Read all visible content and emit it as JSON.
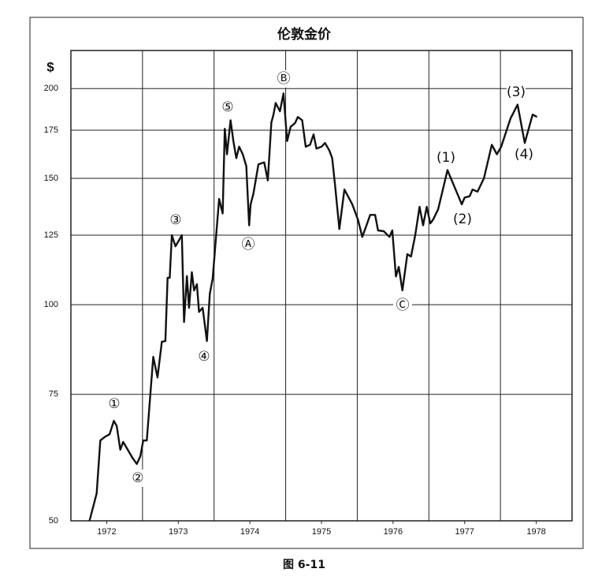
{
  "chart_data": {
    "type": "line",
    "title": "伦敦金价",
    "y_label": "$",
    "caption": "图 6-11",
    "log_y": true,
    "grid": true,
    "color": "#111111",
    "xlim": [
      1971.5,
      1978.5
    ],
    "xticks": [
      1972,
      1973,
      1974,
      1975,
      1976,
      1977,
      1978
    ],
    "xgrid": [
      1972.5,
      1973.5,
      1974.5,
      1975.5,
      1976.5,
      1977.5
    ],
    "ylim": [
      50,
      226
    ],
    "yticks": [
      50,
      75,
      100,
      125,
      150,
      175,
      200
    ],
    "x": [
      1971.76,
      1971.86,
      1971.91,
      1971.98,
      1972.04,
      1972.1,
      1972.14,
      1972.19,
      1972.23,
      1972.36,
      1972.42,
      1972.47,
      1972.51,
      1972.56,
      1972.65,
      1972.71,
      1972.77,
      1972.82,
      1972.85,
      1972.88,
      1972.91,
      1972.96,
      1973.01,
      1973.05,
      1973.08,
      1973.12,
      1973.15,
      1973.19,
      1973.22,
      1973.26,
      1973.29,
      1973.34,
      1973.4,
      1973.44,
      1973.48,
      1973.57,
      1973.62,
      1973.65,
      1973.68,
      1973.73,
      1973.77,
      1973.81,
      1973.85,
      1973.9,
      1973.95,
      1973.99,
      1974.01,
      1974.05,
      1974.12,
      1974.2,
      1974.25,
      1974.3,
      1974.33,
      1974.36,
      1974.42,
      1974.47,
      1974.52,
      1974.57,
      1974.63,
      1974.67,
      1974.73,
      1974.78,
      1974.84,
      1974.89,
      1974.93,
      1975.0,
      1975.05,
      1975.11,
      1975.15,
      1975.19,
      1975.25,
      1975.32,
      1975.43,
      1975.51,
      1975.57,
      1975.63,
      1975.68,
      1975.75,
      1975.79,
      1975.87,
      1975.95,
      1975.99,
      1976.04,
      1976.08,
      1976.13,
      1976.2,
      1976.25,
      1976.31,
      1976.37,
      1976.42,
      1976.47,
      1976.52,
      1976.56,
      1976.63,
      1976.76,
      1976.96,
      1977.0,
      1977.07,
      1977.11,
      1977.18,
      1977.27,
      1977.38,
      1977.45,
      1977.51,
      1977.64,
      1977.74,
      1977.84,
      1977.95,
      1978.01
    ],
    "values": [
      50,
      54.6,
      64.7,
      65.5,
      66,
      68.9,
      67.8,
      62.8,
      64.4,
      61.2,
      60,
      61.5,
      64.7,
      64.7,
      84.6,
      79.2,
      88.8,
      89,
      109,
      109,
      125,
      120.6,
      123,
      125,
      94.6,
      109.6,
      99,
      111,
      104.7,
      106.8,
      97.7,
      99,
      89,
      103.6,
      108.7,
      140.4,
      134,
      175.8,
      162,
      180.7,
      169,
      160,
      166,
      162,
      156,
      129,
      138,
      142.9,
      156.9,
      157.9,
      149,
      179.4,
      184,
      191,
      186,
      197,
      169,
      177,
      179,
      182.6,
      180.7,
      166,
      167,
      172.7,
      165,
      166,
      168,
      164,
      160,
      146.5,
      127.5,
      144.7,
      138,
      131.4,
      124.3,
      129,
      133.4,
      133.4,
      126.9,
      126.6,
      124.3,
      126.9,
      109.5,
      112.9,
      104.7,
      117.6,
      116.7,
      125,
      136.9,
      129,
      136.9,
      129.8,
      131.4,
      135.8,
      154,
      138,
      141,
      141.6,
      144.7,
      143.7,
      150,
      167,
      162,
      166,
      181.7,
      190,
      168,
      184,
      182.6
    ],
    "annotations": [
      "①",
      "②",
      "③",
      "④",
      "⑤",
      "Ⓐ",
      "Ⓑ",
      "Ⓒ",
      "(1)",
      "(2)",
      "(3)",
      "(4)"
    ]
  }
}
